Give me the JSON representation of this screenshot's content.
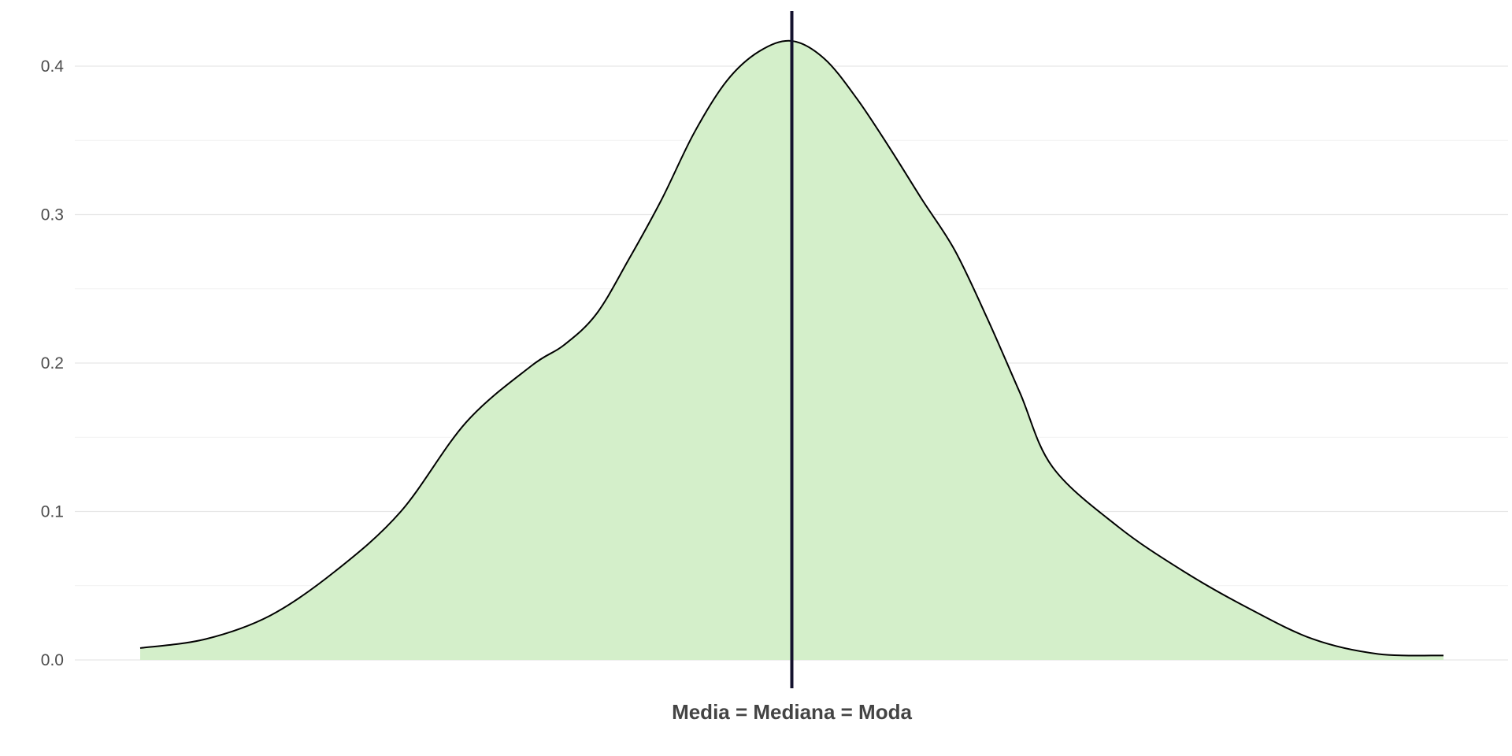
{
  "chart_data": {
    "type": "area",
    "title": "",
    "xlabel": "",
    "ylabel": "",
    "ylim": [
      0,
      0.43
    ],
    "xlim": [
      -4.2,
      4.2
    ],
    "grid": true,
    "y_ticks": [
      {
        "value": 0.0,
        "label": "0.0"
      },
      {
        "value": 0.1,
        "label": "0.1"
      },
      {
        "value": 0.2,
        "label": "0.2"
      },
      {
        "value": 0.3,
        "label": "0.3"
      },
      {
        "value": 0.4,
        "label": "0.4"
      }
    ],
    "series": [
      {
        "x": [
          -4.0,
          -3.6,
          -3.2,
          -2.8,
          -2.4,
          -2.0,
          -1.6,
          -1.4,
          -1.2,
          -1.0,
          -0.8,
          -0.6,
          -0.4,
          -0.2,
          0.0,
          0.2,
          0.4,
          0.6,
          0.8,
          1.0,
          1.2,
          1.4,
          1.6,
          2.0,
          2.4,
          2.8,
          3.2,
          3.6,
          4.0
        ],
        "y": [
          0.008,
          0.014,
          0.03,
          0.06,
          0.1,
          0.16,
          0.198,
          0.212,
          0.233,
          0.27,
          0.31,
          0.355,
          0.39,
          0.41,
          0.417,
          0.405,
          0.378,
          0.345,
          0.31,
          0.276,
          0.23,
          0.18,
          0.13,
          0.09,
          0.06,
          0.035,
          0.014,
          0.004,
          0.003
        ],
        "fill_color": "#d4efca",
        "line_color": "#000000"
      }
    ],
    "vline": {
      "x": 0.0,
      "label": "Media = Mediana = Moda",
      "color": "#14122e"
    }
  }
}
